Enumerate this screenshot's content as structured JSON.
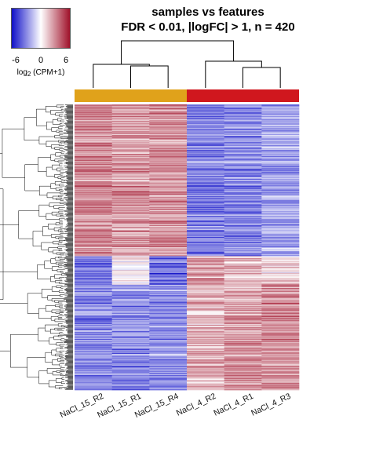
{
  "chart_data": {
    "type": "heatmap",
    "title": "samples vs features",
    "subtitle": "FDR < 0.01, |logFC| > 1, n = 420",
    "columns": [
      "NaCl_15_R2",
      "NaCl_15_R1",
      "NaCl_15_R4",
      "NaCl_4_R2",
      "NaCl_4_R1",
      "NaCl_4_R3"
    ],
    "column_groups": [
      {
        "columns": [
          "NaCl_15_R2",
          "NaCl_15_R1",
          "NaCl_15_R4"
        ],
        "color": "#E0A21B"
      },
      {
        "columns": [
          "NaCl_4_R2",
          "NaCl_4_R1",
          "NaCl_4_R3"
        ],
        "color": "#D0171E"
      }
    ],
    "row_count": 420,
    "color_scale": {
      "low": "#1010C8",
      "mid": "#FFFFFF",
      "high": "#A0112A",
      "range": [
        -6,
        6
      ],
      "ticks": [
        "-6",
        "0",
        "6"
      ],
      "label_main": "log",
      "label_sub": "2",
      "label_rest": " (CPM+1)"
    },
    "row_clusters": [
      {
        "row_fraction": 0.53,
        "values": [
          3.0,
          2.6,
          2.8,
          -3.2,
          -3.0,
          -2.4
        ]
      },
      {
        "row_fraction": 0.1,
        "values": [
          -3.5,
          0.2,
          -3.8,
          2.6,
          1.8,
          1.2
        ]
      },
      {
        "row_fraction": 0.37,
        "values": [
          -3.0,
          -2.8,
          -2.6,
          1.8,
          2.4,
          2.8
        ]
      }
    ]
  }
}
